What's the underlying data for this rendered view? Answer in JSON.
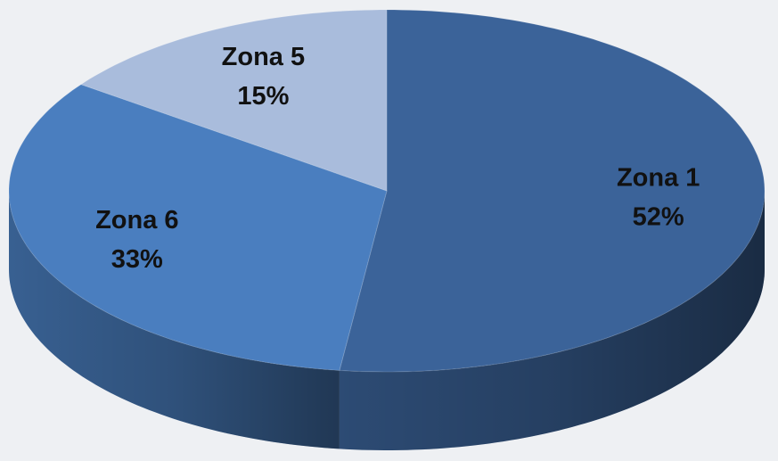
{
  "chart_data": {
    "type": "pie",
    "categories": [
      "Zona 1",
      "Zona 6",
      "Zona 5"
    ],
    "values": [
      52,
      33,
      15
    ],
    "value_labels": [
      "52%",
      "33%",
      "15%"
    ],
    "colors": [
      "#3b6399",
      "#4a7ebf",
      "#a9bcdc"
    ]
  }
}
